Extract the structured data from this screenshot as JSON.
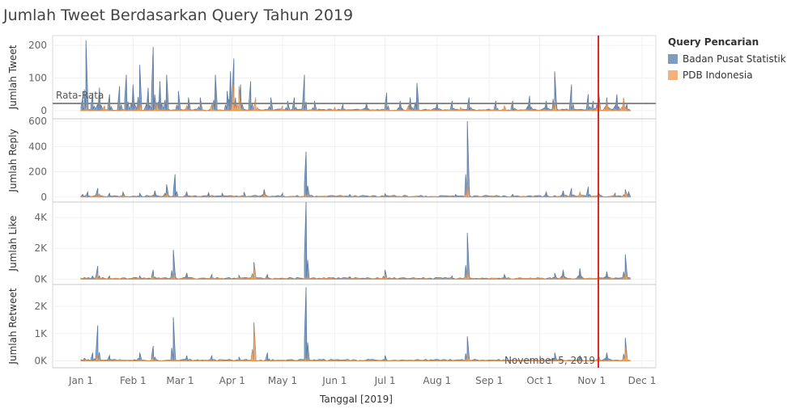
{
  "title": "Jumlah Tweet Berdasarkan Query Tahun 2019",
  "legend": {
    "title": "Query Pencarian",
    "items": [
      {
        "label": "Badan Pusat Statistik",
        "color": "#7e9cc0"
      },
      {
        "label": "PDB Indonesia",
        "color": "#f2b27a"
      }
    ]
  },
  "chart_data": {
    "type": "area",
    "xlabel": "Tanggal [2019]",
    "x_ticks": [
      "Jan 1",
      "Feb 1",
      "Mar 1",
      "Apr 1",
      "May 1",
      "Jun 1",
      "Jul 1",
      "Aug 1",
      "Sep 1",
      "Oct 1",
      "Nov 1",
      "Dec 1"
    ],
    "x_range": [
      "2019-01-01",
      "2019-12-05"
    ],
    "reference_date": "2019-11-05",
    "reference_label": "November 5, 2019",
    "reference_color": "#d62728",
    "legend_placement": "right",
    "panels": [
      {
        "ylabel": "Jumlah Tweet",
        "yticks": [
          {
            "v": 0,
            "t": "0"
          },
          {
            "v": 100,
            "t": "100"
          },
          {
            "v": 200,
            "t": "200"
          }
        ],
        "ylim": [
          -25,
          230
        ],
        "average": 22,
        "average_label": "Rata-Rata",
        "series": [
          {
            "name": "Badan Pusat Statistik",
            "peaks": [
              [
                "2019-01-02",
                40
              ],
              [
                "2019-01-04",
                215
              ],
              [
                "2019-01-08",
                55
              ],
              [
                "2019-01-12",
                70
              ],
              [
                "2019-01-18",
                50
              ],
              [
                "2019-01-24",
                75
              ],
              [
                "2019-01-28",
                110
              ],
              [
                "2019-02-01",
                80
              ],
              [
                "2019-02-05",
                140
              ],
              [
                "2019-02-10",
                70
              ],
              [
                "2019-02-13",
                195
              ],
              [
                "2019-02-17",
                90
              ],
              [
                "2019-02-21",
                110
              ],
              [
                "2019-02-28",
                60
              ],
              [
                "2019-03-06",
                40
              ],
              [
                "2019-03-13",
                40
              ],
              [
                "2019-03-22",
                110
              ],
              [
                "2019-03-29",
                60
              ],
              [
                "2019-03-31",
                120
              ],
              [
                "2019-04-02",
                160
              ],
              [
                "2019-04-06",
                80
              ],
              [
                "2019-04-12",
                90
              ],
              [
                "2019-04-24",
                40
              ],
              [
                "2019-05-04",
                30
              ],
              [
                "2019-05-08",
                40
              ],
              [
                "2019-05-14",
                110
              ],
              [
                "2019-05-20",
                30
              ],
              [
                "2019-06-06",
                20
              ],
              [
                "2019-06-20",
                25
              ],
              [
                "2019-07-02",
                55
              ],
              [
                "2019-07-10",
                30
              ],
              [
                "2019-07-16",
                40
              ],
              [
                "2019-07-20",
                85
              ],
              [
                "2019-08-01",
                25
              ],
              [
                "2019-08-10",
                30
              ],
              [
                "2019-08-20",
                40
              ],
              [
                "2019-09-05",
                30
              ],
              [
                "2019-09-15",
                30
              ],
              [
                "2019-09-25",
                45
              ],
              [
                "2019-10-05",
                30
              ],
              [
                "2019-10-10",
                120
              ],
              [
                "2019-10-20",
                80
              ],
              [
                "2019-10-30",
                50
              ],
              [
                "2019-11-02",
                30
              ],
              [
                "2019-11-05",
                65
              ],
              [
                "2019-11-10",
                40
              ],
              [
                "2019-11-16",
                50
              ],
              [
                "2019-11-20",
                35
              ],
              [
                "2019-11-22",
                20
              ]
            ]
          },
          {
            "name": "PDB Indonesia",
            "peaks": [
              [
                "2019-01-04",
                10
              ],
              [
                "2019-01-15",
                15
              ],
              [
                "2019-02-05",
                20
              ],
              [
                "2019-02-15",
                25
              ],
              [
                "2019-03-05",
                15
              ],
              [
                "2019-03-20",
                20
              ],
              [
                "2019-04-02",
                80
              ],
              [
                "2019-04-05",
                75
              ],
              [
                "2019-04-15",
                40
              ],
              [
                "2019-05-01",
                15
              ],
              [
                "2019-06-01",
                10
              ],
              [
                "2019-07-15",
                15
              ],
              [
                "2019-08-15",
                10
              ],
              [
                "2019-09-10",
                15
              ],
              [
                "2019-10-10",
                30
              ],
              [
                "2019-11-05",
                35
              ],
              [
                "2019-11-10",
                30
              ],
              [
                "2019-11-20",
                40
              ]
            ]
          }
        ]
      },
      {
        "ylabel": "Jumlah Reply",
        "yticks": [
          {
            "v": 0,
            "t": "0"
          },
          {
            "v": 200,
            "t": "200"
          },
          {
            "v": 400,
            "t": "400"
          },
          {
            "v": 600,
            "t": "600"
          }
        ],
        "ylim": [
          -40,
          620
        ],
        "series": [
          {
            "name": "Badan Pusat Statistik",
            "peaks": [
              [
                "2019-01-02",
                20
              ],
              [
                "2019-01-05",
                40
              ],
              [
                "2019-01-11",
                70
              ],
              [
                "2019-01-18",
                30
              ],
              [
                "2019-01-26",
                40
              ],
              [
                "2019-02-05",
                30
              ],
              [
                "2019-02-14",
                50
              ],
              [
                "2019-02-21",
                100
              ],
              [
                "2019-02-26",
                180
              ],
              [
                "2019-03-05",
                40
              ],
              [
                "2019-03-18",
                35
              ],
              [
                "2019-03-26",
                30
              ],
              [
                "2019-04-08",
                40
              ],
              [
                "2019-04-20",
                60
              ],
              [
                "2019-05-01",
                30
              ],
              [
                "2019-05-15",
                360
              ],
              [
                "2019-06-10",
                20
              ],
              [
                "2019-07-01",
                25
              ],
              [
                "2019-08-12",
                20
              ],
              [
                "2019-08-19",
                600
              ],
              [
                "2019-09-15",
                20
              ],
              [
                "2019-10-05",
                40
              ],
              [
                "2019-10-15",
                50
              ],
              [
                "2019-10-20",
                70
              ],
              [
                "2019-10-30",
                80
              ],
              [
                "2019-11-05",
                40
              ],
              [
                "2019-11-15",
                30
              ],
              [
                "2019-11-21",
                60
              ],
              [
                "2019-11-23",
                40
              ]
            ]
          },
          {
            "name": "PDB Indonesia",
            "peaks": [
              [
                "2019-01-12",
                25
              ],
              [
                "2019-02-21",
                30
              ],
              [
                "2019-03-20",
                15
              ],
              [
                "2019-04-20",
                30
              ],
              [
                "2019-05-15",
                20
              ],
              [
                "2019-08-19",
                100
              ],
              [
                "2019-10-25",
                40
              ],
              [
                "2019-11-05",
                20
              ],
              [
                "2019-11-21",
                40
              ]
            ]
          }
        ]
      },
      {
        "ylabel": "Jumlah Like",
        "yticks": [
          {
            "v": 0,
            "t": "0K"
          },
          {
            "v": 2000,
            "t": "2K"
          },
          {
            "v": 4000,
            "t": "4K"
          }
        ],
        "ylim": [
          -350,
          5000
        ],
        "series": [
          {
            "name": "Badan Pusat Statistik",
            "peaks": [
              [
                "2019-01-03",
                100
              ],
              [
                "2019-01-08",
                200
              ],
              [
                "2019-01-11",
                850
              ],
              [
                "2019-01-18",
                200
              ],
              [
                "2019-02-05",
                200
              ],
              [
                "2019-02-13",
                600
              ],
              [
                "2019-02-25",
                1900
              ],
              [
                "2019-03-05",
                400
              ],
              [
                "2019-03-20",
                300
              ],
              [
                "2019-04-05",
                250
              ],
              [
                "2019-04-14",
                1100
              ],
              [
                "2019-04-22",
                300
              ],
              [
                "2019-05-15",
                5000
              ],
              [
                "2019-06-10",
                150
              ],
              [
                "2019-07-01",
                600
              ],
              [
                "2019-08-10",
                200
              ],
              [
                "2019-08-19",
                3000
              ],
              [
                "2019-09-10",
                300
              ],
              [
                "2019-10-10",
                400
              ],
              [
                "2019-10-15",
                600
              ],
              [
                "2019-10-25",
                700
              ],
              [
                "2019-11-05",
                200
              ],
              [
                "2019-11-10",
                500
              ],
              [
                "2019-11-21",
                1600
              ]
            ]
          },
          {
            "name": "PDB Indonesia",
            "peaks": [
              [
                "2019-01-11",
                300
              ],
              [
                "2019-02-13",
                200
              ],
              [
                "2019-02-25",
                300
              ],
              [
                "2019-04-14",
                900
              ],
              [
                "2019-05-15",
                100
              ],
              [
                "2019-07-01",
                300
              ],
              [
                "2019-08-19",
                500
              ],
              [
                "2019-10-15",
                200
              ],
              [
                "2019-11-05",
                150
              ],
              [
                "2019-11-21",
                400
              ]
            ]
          }
        ]
      },
      {
        "ylabel": "Jumlah Retweet",
        "yticks": [
          {
            "v": 0,
            "t": "0K"
          },
          {
            "v": 1000,
            "t": "1K"
          },
          {
            "v": 2000,
            "t": "2K"
          }
        ],
        "ylim": [
          -250,
          2800
        ],
        "series": [
          {
            "name": "Badan Pusat Statistik",
            "peaks": [
              [
                "2019-01-03",
                100
              ],
              [
                "2019-01-08",
                300
              ],
              [
                "2019-01-11",
                1300
              ],
              [
                "2019-01-18",
                200
              ],
              [
                "2019-02-05",
                300
              ],
              [
                "2019-02-13",
                550
              ],
              [
                "2019-02-25",
                1600
              ],
              [
                "2019-03-05",
                200
              ],
              [
                "2019-03-20",
                200
              ],
              [
                "2019-04-05",
                150
              ],
              [
                "2019-04-14",
                1400
              ],
              [
                "2019-04-22",
                300
              ],
              [
                "2019-05-15",
                2700
              ],
              [
                "2019-07-01",
                200
              ],
              [
                "2019-08-19",
                900
              ],
              [
                "2019-10-10",
                300
              ],
              [
                "2019-10-25",
                200
              ],
              [
                "2019-11-05",
                200
              ],
              [
                "2019-11-10",
                300
              ],
              [
                "2019-11-21",
                850
              ]
            ]
          },
          {
            "name": "PDB Indonesia",
            "peaks": [
              [
                "2019-01-11",
                200
              ],
              [
                "2019-02-13",
                150
              ],
              [
                "2019-04-14",
                1300
              ],
              [
                "2019-05-15",
                100
              ],
              [
                "2019-08-19",
                200
              ],
              [
                "2019-11-05",
                150
              ],
              [
                "2019-11-21",
                500
              ]
            ]
          }
        ]
      }
    ]
  }
}
